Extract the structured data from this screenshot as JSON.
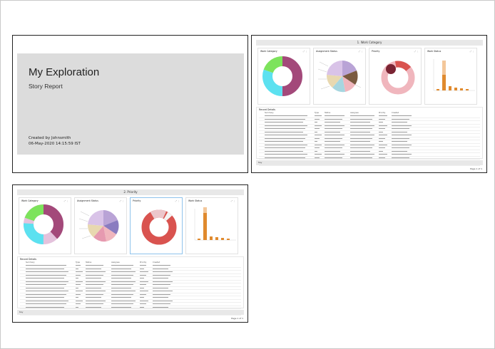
{
  "cover": {
    "title": "My Exploration",
    "subtitle": "Story Report",
    "created_by": "Created by Johnsmith",
    "date": "06-May-2020 14:15:59 IST"
  },
  "pages": [
    {
      "header": "1. Work Category",
      "cards": [
        {
          "title": "Work Category"
        },
        {
          "title": "Assignment Status"
        },
        {
          "title": "Priority"
        },
        {
          "title": "Work Status",
          "ylabel": "Count(Status)",
          "xlabel": "Status"
        }
      ],
      "table_title": "Record Details",
      "columns": [
        "Summary",
        "Type",
        "Status",
        "Assignee",
        "Priority",
        "Created"
      ],
      "footer": "Key",
      "page": "Page 1 of 1"
    },
    {
      "header": "2. Priority",
      "cards": [
        {
          "title": "Work Category"
        },
        {
          "title": "Assignment Status"
        },
        {
          "title": "Priority"
        },
        {
          "title": "Work Status",
          "ylabel": "Count(Status)",
          "xlabel": "Status"
        }
      ],
      "table_title": "Record Details",
      "columns": [
        "Summary",
        "Type",
        "Status",
        "Assignee",
        "Priority",
        "Created"
      ],
      "footer": "Key",
      "page": "Page 1 of 1"
    }
  ],
  "colors": {
    "green": "#7de35c",
    "cyan": "#5ce1f0",
    "purple": "#a3497a",
    "pink": "#f0b6bd",
    "red": "#d9534f",
    "orange": "#e08a2e",
    "lilac": "#b9a3d6",
    "maroon": "#7a2433"
  }
}
